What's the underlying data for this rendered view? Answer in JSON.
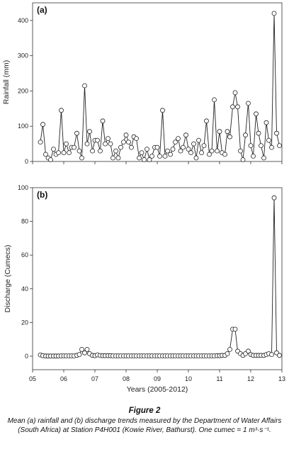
{
  "chart_data": [
    {
      "type": "line",
      "panel_label": "(a)",
      "ylabel": "Rainfall (mm)",
      "xlim": [
        5,
        13
      ],
      "ylim": [
        0,
        450
      ],
      "yticks": [
        "0",
        "100",
        "200",
        "300",
        "400"
      ],
      "grid": false,
      "series": [
        {
          "x": [
            5.25,
            5.33,
            5.42,
            5.5,
            5.58,
            5.67,
            5.75,
            5.83,
            5.92,
            6.0,
            6.08,
            6.17,
            6.25,
            6.33,
            6.42,
            6.5,
            6.58,
            6.67,
            6.75,
            6.83,
            6.92,
            7.0,
            7.08,
            7.17,
            7.25,
            7.33,
            7.42,
            7.5,
            7.58,
            7.67,
            7.75,
            7.83,
            7.92,
            8.0,
            8.08,
            8.17,
            8.25,
            8.33,
            8.42,
            8.5,
            8.58,
            8.67,
            8.75,
            8.83,
            8.92,
            9.0,
            9.08,
            9.17,
            9.25,
            9.33,
            9.42,
            9.5,
            9.58,
            9.67,
            9.75,
            9.83,
            9.92,
            10.0,
            10.08,
            10.17,
            10.25,
            10.33,
            10.42,
            10.5,
            10.58,
            10.67,
            10.75,
            10.83,
            10.92,
            11.0,
            11.08,
            11.17,
            11.25,
            11.33,
            11.42,
            11.5,
            11.58,
            11.67,
            11.75,
            11.83,
            11.92,
            12.0,
            12.08,
            12.17,
            12.25,
            12.33,
            12.42,
            12.5,
            12.58,
            12.67,
            12.75,
            12.83,
            12.92
          ],
          "y": [
            55,
            105,
            20,
            10,
            5,
            35,
            20,
            25,
            145,
            25,
            50,
            25,
            40,
            40,
            80,
            30,
            10,
            215,
            50,
            85,
            30,
            60,
            60,
            30,
            115,
            50,
            65,
            50,
            10,
            30,
            10,
            40,
            55,
            75,
            55,
            40,
            70,
            65,
            10,
            25,
            5,
            35,
            5,
            15,
            40,
            40,
            15,
            145,
            15,
            30,
            20,
            35,
            55,
            65,
            30,
            40,
            75,
            35,
            25,
            50,
            10,
            60,
            25,
            45,
            115,
            20,
            30,
            175,
            30,
            85,
            25,
            20,
            85,
            70,
            155,
            195,
            155,
            30,
            5,
            75,
            165,
            45,
            15,
            135,
            80,
            45,
            10,
            110,
            60,
            40,
            420,
            80,
            45
          ]
        }
      ]
    },
    {
      "type": "line",
      "panel_label": "(b)",
      "xlabel": "Years (2005-2012)",
      "ylabel": "Discharge (Cumecs)",
      "xlim": [
        5,
        13
      ],
      "ylim": [
        -8,
        100
      ],
      "xticks": [
        "05",
        "06",
        "07",
        "08",
        "09",
        "10",
        "11",
        "12",
        "13"
      ],
      "yticks": [
        "0",
        "20",
        "40",
        "60",
        "80",
        "100"
      ],
      "grid": false,
      "series": [
        {
          "x": [
            5.25,
            5.33,
            5.42,
            5.5,
            5.58,
            5.67,
            5.75,
            5.83,
            5.92,
            6.0,
            6.08,
            6.17,
            6.25,
            6.33,
            6.42,
            6.5,
            6.58,
            6.67,
            6.75,
            6.83,
            6.92,
            7.0,
            7.08,
            7.17,
            7.25,
            7.33,
            7.42,
            7.5,
            7.58,
            7.67,
            7.75,
            7.83,
            7.92,
            8.0,
            8.08,
            8.17,
            8.25,
            8.33,
            8.42,
            8.5,
            8.58,
            8.67,
            8.75,
            8.83,
            8.92,
            9.0,
            9.08,
            9.17,
            9.25,
            9.33,
            9.42,
            9.5,
            9.58,
            9.67,
            9.75,
            9.83,
            9.92,
            10.0,
            10.08,
            10.17,
            10.25,
            10.33,
            10.42,
            10.5,
            10.58,
            10.67,
            10.75,
            10.83,
            10.92,
            11.0,
            11.08,
            11.17,
            11.25,
            11.33,
            11.42,
            11.5,
            11.58,
            11.67,
            11.75,
            11.83,
            11.92,
            12.0,
            12.08,
            12.17,
            12.25,
            12.33,
            12.42,
            12.5,
            12.58,
            12.67,
            12.75,
            12.83,
            12.92
          ],
          "y": [
            0.8,
            0.3,
            0.1,
            0.1,
            0.1,
            0.1,
            0.1,
            0.1,
            0.2,
            0.2,
            0.2,
            0.2,
            0.2,
            0.2,
            0.5,
            1.0,
            4.0,
            2.0,
            4.0,
            1.5,
            0.5,
            0.3,
            0.8,
            0.4,
            0.3,
            0.3,
            0.3,
            0.3,
            0.2,
            0.2,
            0.2,
            0.2,
            0.2,
            0.2,
            0.2,
            0.2,
            0.2,
            0.2,
            0.2,
            0.2,
            0.2,
            0.2,
            0.2,
            0.2,
            0.2,
            0.2,
            0.2,
            0.2,
            0.2,
            0.2,
            0.2,
            0.2,
            0.2,
            0.2,
            0.2,
            0.2,
            0.2,
            0.2,
            0.2,
            0.2,
            0.2,
            0.2,
            0.2,
            0.2,
            0.2,
            0.2,
            0.2,
            0.2,
            0.3,
            0.3,
            0.5,
            0.5,
            1.5,
            4.0,
            16.0,
            16.0,
            3.0,
            1.5,
            0.5,
            1.5,
            3.0,
            1.0,
            0.5,
            0.5,
            0.5,
            0.5,
            0.5,
            1.0,
            1.5,
            1.0,
            94.0,
            2.0,
            0.5
          ]
        }
      ]
    }
  ],
  "caption": {
    "title": "Figure 2",
    "text": "Mean (a) rainfall and (b) discharge trends measured by the Department of Water Affairs (South Africa) at Station P4H001 (Kowie River, Bathurst). One cumec = 1 m³·s⁻¹."
  }
}
